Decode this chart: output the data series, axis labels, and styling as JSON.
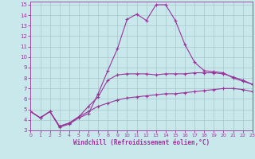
{
  "xlabel": "Windchill (Refroidissement éolien,°C)",
  "xlim": [
    0,
    23
  ],
  "ylim": [
    3,
    15.3
  ],
  "xticks": [
    0,
    1,
    2,
    3,
    4,
    5,
    6,
    7,
    8,
    9,
    10,
    11,
    12,
    13,
    14,
    15,
    16,
    17,
    18,
    19,
    20,
    21,
    22,
    23
  ],
  "yticks": [
    3,
    4,
    5,
    6,
    7,
    8,
    9,
    10,
    11,
    12,
    13,
    14,
    15
  ],
  "bg_color": "#c8e8ec",
  "line_color": "#993399",
  "grid_color": "#a8c8cc",
  "curve1_x": [
    0,
    1,
    2,
    3,
    4,
    5,
    6,
    7,
    8,
    9,
    10,
    11,
    12,
    13,
    14,
    15,
    16,
    17,
    18,
    19,
    20,
    21,
    22,
    23
  ],
  "curve1_y": [
    4.8,
    4.2,
    4.8,
    3.3,
    3.6,
    4.2,
    4.6,
    6.5,
    8.7,
    10.8,
    13.6,
    14.1,
    13.5,
    15.0,
    15.0,
    13.5,
    11.2,
    9.5,
    8.7,
    8.6,
    8.5,
    8.0,
    7.7,
    7.4
  ],
  "curve2_x": [
    0,
    1,
    2,
    3,
    4,
    5,
    6,
    7,
    8,
    9,
    10,
    11,
    12,
    13,
    14,
    15,
    16,
    17,
    18,
    19,
    20,
    21,
    22,
    23
  ],
  "curve2_y": [
    4.8,
    4.2,
    4.8,
    3.4,
    3.7,
    4.3,
    5.3,
    6.2,
    7.8,
    8.3,
    8.4,
    8.4,
    8.4,
    8.3,
    8.4,
    8.4,
    8.4,
    8.5,
    8.5,
    8.5,
    8.4,
    8.1,
    7.8,
    7.4
  ],
  "curve3_x": [
    0,
    1,
    2,
    3,
    4,
    5,
    6,
    7,
    8,
    9,
    10,
    11,
    12,
    13,
    14,
    15,
    16,
    17,
    18,
    19,
    20,
    21,
    22,
    23
  ],
  "curve3_y": [
    4.8,
    4.2,
    4.8,
    3.4,
    3.7,
    4.3,
    4.8,
    5.3,
    5.6,
    5.9,
    6.1,
    6.2,
    6.3,
    6.4,
    6.5,
    6.5,
    6.6,
    6.7,
    6.8,
    6.9,
    7.0,
    7.0,
    6.9,
    6.7
  ]
}
